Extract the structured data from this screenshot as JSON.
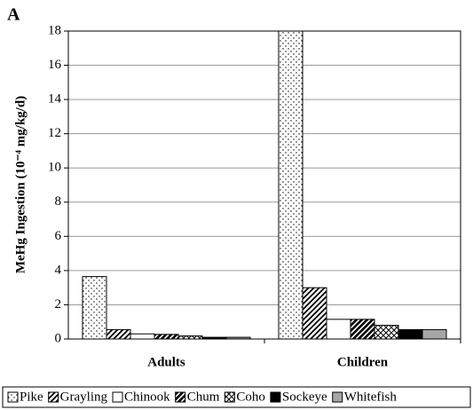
{
  "chart_data": {
    "type": "bar",
    "panel_label": "A",
    "y_label": "MeHg Ingestion (10⁻⁴ mg/kg/d)",
    "categories": [
      "Adults",
      "Children"
    ],
    "series": [
      {
        "name": "Pike",
        "color": "#ffffff",
        "pattern": "dots",
        "values": [
          3.65,
          18
        ]
      },
      {
        "name": "Grayling",
        "color": "#ffffff",
        "pattern": "hatch",
        "values": [
          0.55,
          3.0
        ]
      },
      {
        "name": "Chinook",
        "color": "#ffffff",
        "values": [
          0.3,
          1.15
        ]
      },
      {
        "name": "Chum",
        "color": "#ffffff",
        "pattern": "heavy-hatch",
        "values": [
          0.27,
          1.15
        ]
      },
      {
        "name": "Coho",
        "color": "#ffffff",
        "pattern": "crosshatch",
        "values": [
          0.18,
          0.8
        ]
      },
      {
        "name": "Sockeye",
        "color": "#000000",
        "values": [
          0.1,
          0.55
        ]
      },
      {
        "name": "Whitefish",
        "color": "#a6a6a6",
        "values": [
          0.1,
          0.55
        ]
      }
    ],
    "ylim": [
      0,
      18
    ],
    "yticks": [
      0,
      2,
      4,
      6,
      8,
      10,
      12,
      14,
      16,
      18
    ],
    "grid": true,
    "legend": "bottom"
  }
}
